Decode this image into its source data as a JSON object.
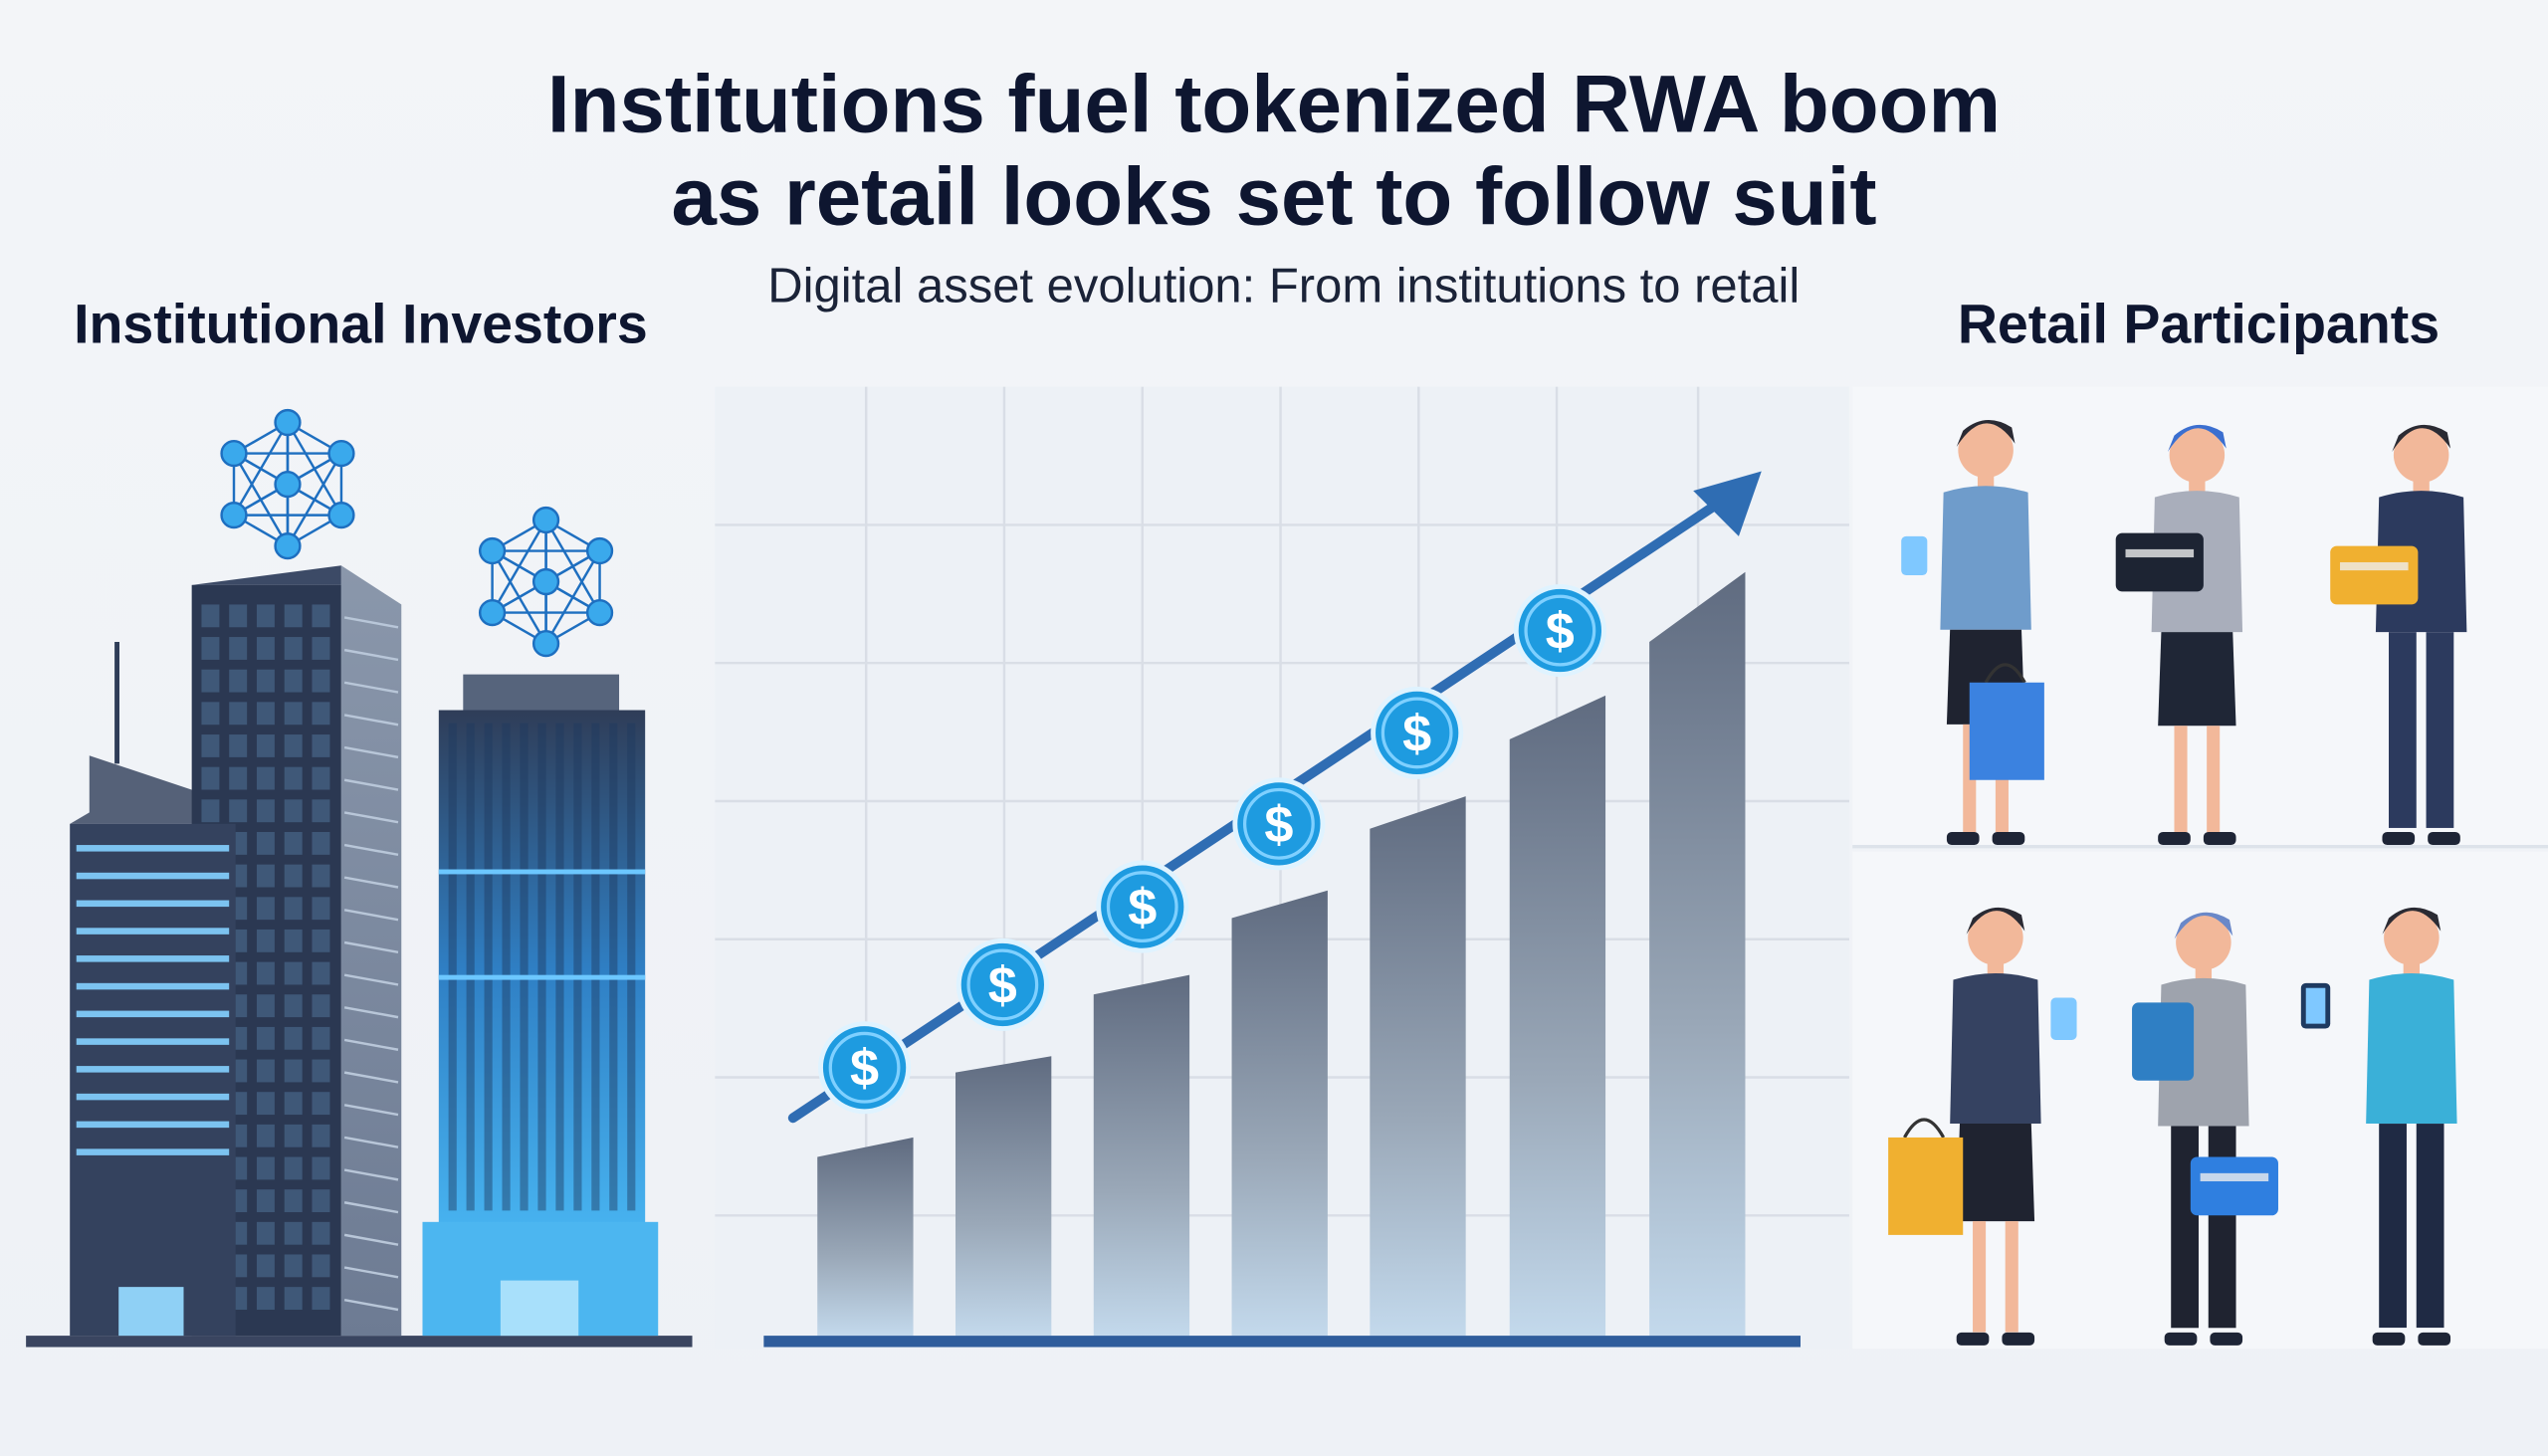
{
  "header": {
    "title_line1": "Institutions fuel tokenized RWA boom",
    "title_line2": "as retail looks set to follow suit",
    "subtitle": "Digital asset evolution: From institutions to retail"
  },
  "left_panel": {
    "heading": "Institutional Investors"
  },
  "right_panel": {
    "heading": "Retail Participants"
  },
  "center_panel": {
    "coin_symbol": "$"
  },
  "colors": {
    "title": "#0e1630",
    "bar_top": "#5f6b80",
    "bar_bottom": "#c3d9ec",
    "arrow": "#2f6db3",
    "coin": "#1e9be0",
    "building_dark": "#2f3d58",
    "building_blue": "#3aa6e8"
  },
  "icons": [
    "network-node-icon",
    "dollar-coin-icon",
    "trend-arrow-icon",
    "shopping-bag-icon",
    "credit-card-icon",
    "smartphone-icon"
  ]
}
